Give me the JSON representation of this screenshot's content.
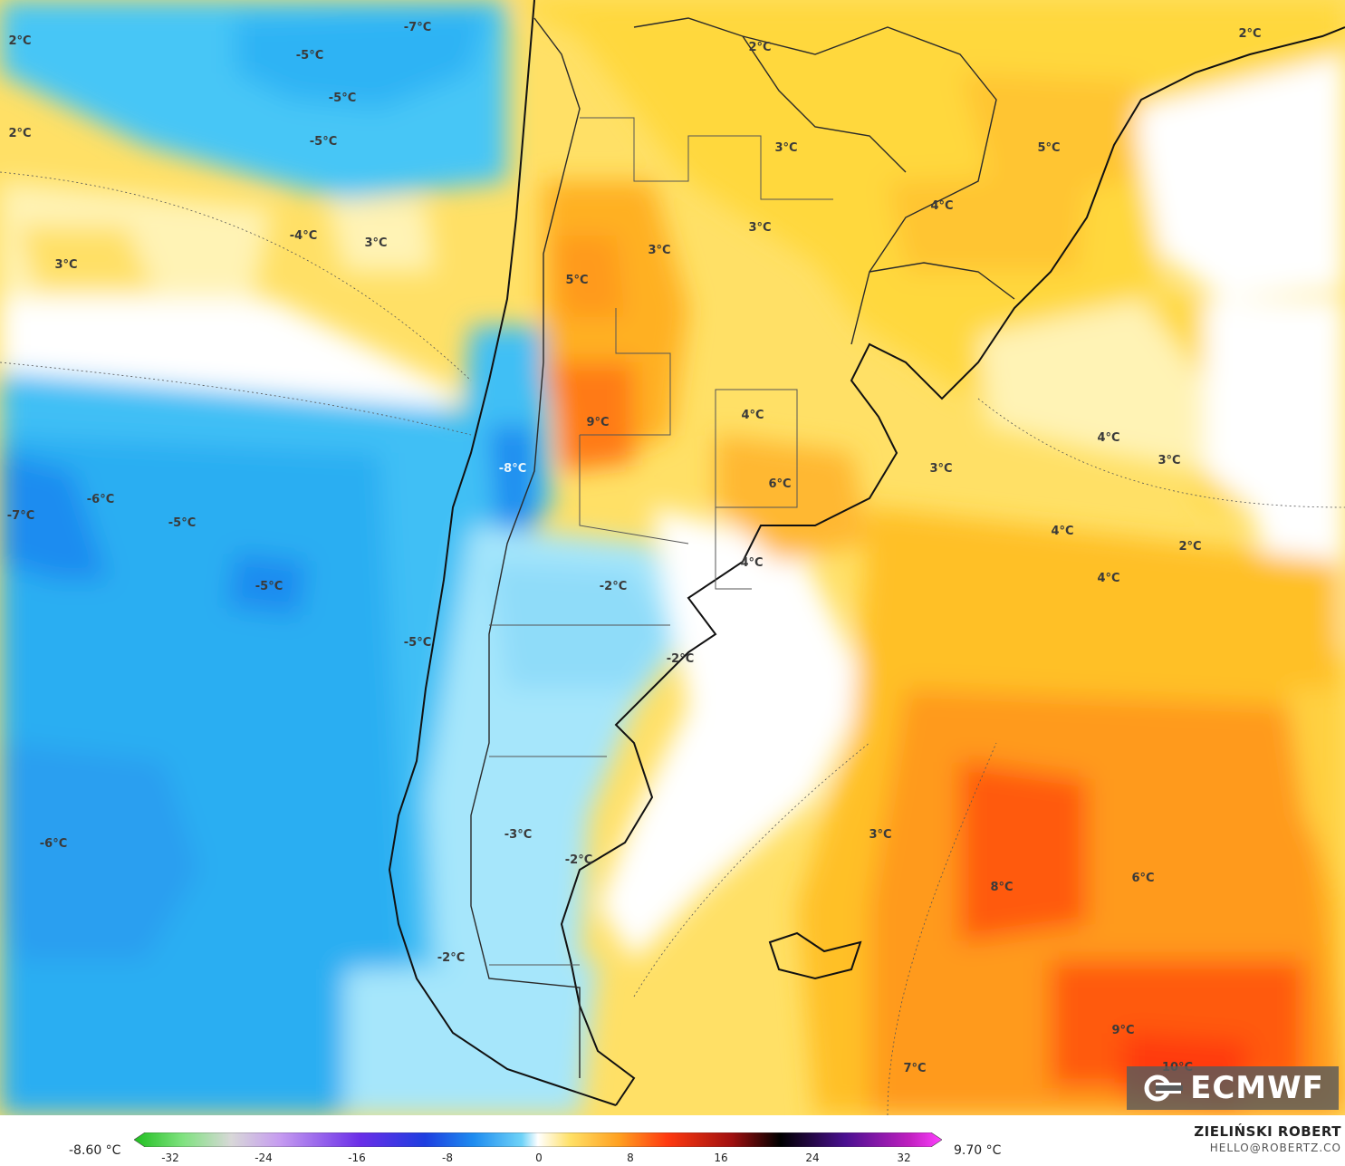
{
  "map": {
    "labels": [
      {
        "text": "2°C"
      },
      {
        "text": "2°C"
      },
      {
        "text": "-7°C"
      },
      {
        "text": "-5°C"
      },
      {
        "text": "-5°C"
      },
      {
        "text": "-5°C"
      },
      {
        "text": "3°C"
      },
      {
        "text": "-4°C"
      },
      {
        "text": "3°C"
      },
      {
        "text": "2°C"
      },
      {
        "text": "2°C"
      },
      {
        "text": "3°C"
      },
      {
        "text": "5°C"
      },
      {
        "text": "3°C"
      },
      {
        "text": "4°C"
      },
      {
        "text": "3°C"
      },
      {
        "text": "5°C"
      },
      {
        "text": "9°C"
      },
      {
        "text": "4°C"
      },
      {
        "text": "6°C"
      },
      {
        "text": "-8°C"
      },
      {
        "text": "-6°C"
      },
      {
        "text": "-7°C"
      },
      {
        "text": "-5°C"
      },
      {
        "text": "-5°C"
      },
      {
        "text": "3°C"
      },
      {
        "text": "4°C"
      },
      {
        "text": "3°C"
      },
      {
        "text": "4°C"
      },
      {
        "text": "2°C"
      },
      {
        "text": "4°C"
      },
      {
        "text": "-2°C"
      },
      {
        "text": "4°C"
      },
      {
        "text": "-5°C"
      },
      {
        "text": "-2°C"
      },
      {
        "text": "-6°C"
      },
      {
        "text": "-3°C"
      },
      {
        "text": "-2°C"
      },
      {
        "text": "3°C"
      },
      {
        "text": "8°C"
      },
      {
        "text": "6°C"
      },
      {
        "text": "-2°C"
      },
      {
        "text": "9°C"
      },
      {
        "text": "7°C"
      },
      {
        "text": "10°C"
      }
    ]
  },
  "logo": {
    "text": "ECMWF"
  },
  "legend": {
    "min_label": "-8.60 °C",
    "max_label": "9.70 °C",
    "ticks": [
      "-32",
      "-24",
      "-16",
      "-8",
      "0",
      "8",
      "16",
      "24",
      "32"
    ]
  },
  "author": {
    "name": "ZIELIŃSKI ROBERT",
    "email": "HELLO@ROBERTZ.CO"
  },
  "colors": {
    "deep_blue": "#1e8cf0",
    "mid_blue": "#3fbff5",
    "light_blue": "#a6e6fb",
    "white": "#ffffff",
    "pale_yellow": "#fff3b5",
    "yellow": "#ffd23a",
    "orange": "#ff9a1e",
    "red_orange": "#ff5a10"
  }
}
